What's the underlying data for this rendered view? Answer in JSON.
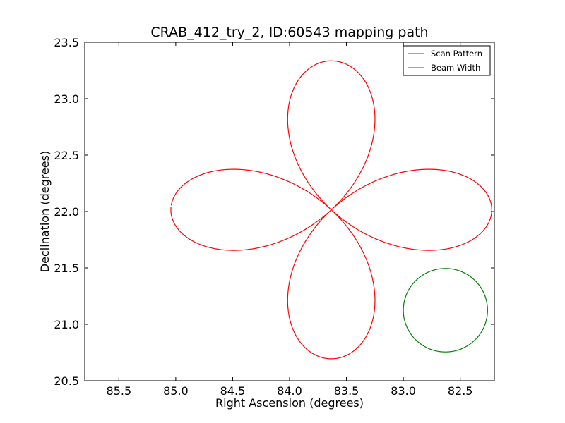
{
  "chart_data": {
    "type": "line",
    "title": "CRAB_412_try_2, ID:60543 mapping path",
    "xlabel": "Right Ascension (degrees)",
    "ylabel": "Declination (degrees)",
    "xlim": [
      85.8,
      82.2
    ],
    "ylim": [
      20.5,
      23.5
    ],
    "x_inverted": true,
    "xticks": [
      85.5,
      85.0,
      84.5,
      84.0,
      83.5,
      83.0,
      82.5
    ],
    "xtick_labels": [
      "85.5",
      "85.0",
      "84.5",
      "84.0",
      "83.5",
      "83.0",
      "82.5"
    ],
    "yticks": [
      20.5,
      21.0,
      21.5,
      22.0,
      22.5,
      23.0,
      23.5
    ],
    "ytick_labels": [
      "20.5",
      "21.0",
      "21.5",
      "22.0",
      "22.5",
      "23.0",
      "23.5"
    ],
    "grid": false,
    "legend_position": "top-right",
    "series": [
      {
        "name": "Scan Pattern",
        "color": "#ff0000",
        "kind": "rose-path",
        "center": {
          "ra": 83.633,
          "dec": 22.015
        },
        "lobe_radius_deg": 1.42,
        "petals": 4,
        "start_ra": 85.05,
        "start_dec": 22.02,
        "end_ra": 85.05,
        "end_dec": 21.95
      },
      {
        "name": "Beam Width",
        "color": "#008000",
        "kind": "circle",
        "center": {
          "ra": 82.63,
          "dec": 21.125
        },
        "radius_deg": 0.37
      }
    ]
  }
}
